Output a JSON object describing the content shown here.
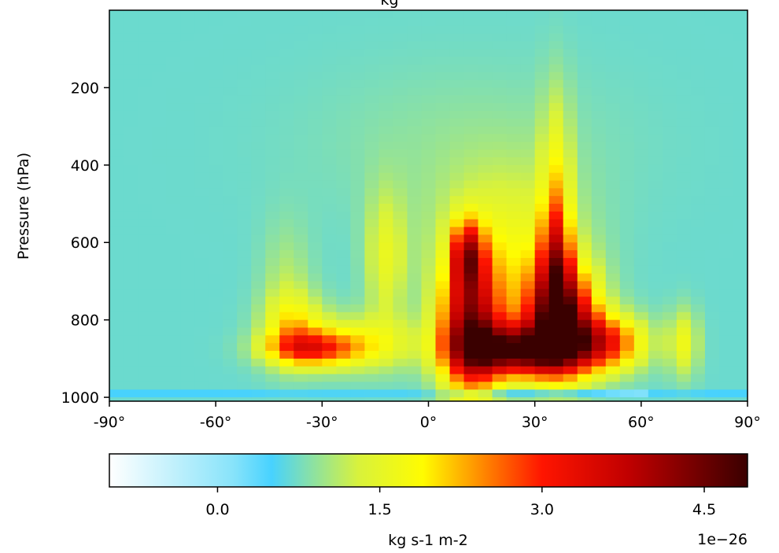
{
  "chart_data": {
    "type": "heatmap",
    "title": "kg",
    "xlabel": "",
    "ylabel": "Pressure (hPa)",
    "x_ticks": [
      "-90°",
      "-60°",
      "-30°",
      "0°",
      "30°",
      "60°",
      "90°"
    ],
    "x_tick_values": [
      -90,
      -60,
      -30,
      0,
      30,
      60,
      90
    ],
    "y_ticks": [
      "200",
      "400",
      "600",
      "800",
      "1000"
    ],
    "y_tick_values": [
      200,
      400,
      600,
      800,
      1000
    ],
    "xlim": [
      -90,
      90
    ],
    "ylim": [
      1010,
      0
    ],
    "x_step": 4,
    "y_step": 20,
    "background_value": 0.7,
    "features": [
      {
        "lat": 12,
        "p": 820,
        "wlat": 6,
        "wp": 120,
        "amp": 3.3
      },
      {
        "lat": 11,
        "p": 630,
        "wlat": 3,
        "wp": 60,
        "amp": 2.2
      },
      {
        "lat": 25,
        "p": 880,
        "wlat": 11,
        "wp": 45,
        "amp": 3.4
      },
      {
        "lat": 37,
        "p": 800,
        "wlat": 7,
        "wp": 95,
        "amp": 3.8
      },
      {
        "lat": 36,
        "p": 650,
        "wlat": 3,
        "wp": 110,
        "amp": 1.9
      },
      {
        "lat": 36,
        "p": 430,
        "wlat": 3,
        "wp": 160,
        "amp": 0.8
      },
      {
        "lat": 50,
        "p": 860,
        "wlat": 8,
        "wp": 50,
        "amp": 2.1
      },
      {
        "lat": 22,
        "p": 620,
        "wlat": 14,
        "wp": 140,
        "amp": 0.9
      },
      {
        "lat": -33,
        "p": 875,
        "wlat": 9,
        "wp": 30,
        "amp": 1.7
      },
      {
        "lat": -38,
        "p": 820,
        "wlat": 6,
        "wp": 60,
        "amp": 1.0
      },
      {
        "lat": -20,
        "p": 860,
        "wlat": 12,
        "wp": 50,
        "amp": 1.0
      },
      {
        "lat": -12,
        "p": 640,
        "wlat": 4,
        "wp": 120,
        "amp": 0.8
      },
      {
        "lat": -40,
        "p": 720,
        "wlat": 5,
        "wp": 120,
        "amp": 0.4
      },
      {
        "lat": 72,
        "p": 860,
        "wlat": 3,
        "wp": 60,
        "amp": 0.9
      },
      {
        "lat": 10,
        "p": 350,
        "wlat": 30,
        "wp": 150,
        "amp": 0.2
      }
    ],
    "surface_band": {
      "p_top": 985,
      "p_bottom": 1005,
      "lat_from": 5,
      "lat_to": 60,
      "amp": -0.55
    },
    "colorbar": {
      "label": "kg s-1 m-2",
      "tick_labels": [
        "0.0",
        "1.5",
        "3.0",
        "4.5"
      ],
      "tick_values": [
        0.0,
        1.5,
        3.0,
        4.5
      ],
      "range": [
        -1.0,
        4.9
      ],
      "offset_text": "1e−26",
      "colormap": [
        {
          "v": -1.0,
          "color": "#ffffff"
        },
        {
          "v": 0.15,
          "color": "#87e3fa"
        },
        {
          "v": 0.5,
          "color": "#47d2ff"
        },
        {
          "v": 1.3,
          "color": "#d8f23c"
        },
        {
          "v": 1.9,
          "color": "#fffc00"
        },
        {
          "v": 3.0,
          "color": "#ff1500"
        },
        {
          "v": 3.8,
          "color": "#c00000"
        },
        {
          "v": 4.9,
          "color": "#3a0000"
        }
      ]
    }
  }
}
